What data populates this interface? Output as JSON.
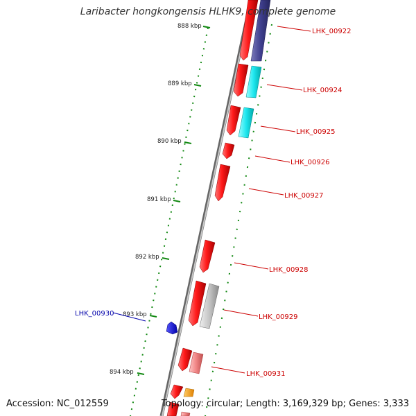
{
  "title": "Laribacter hongkongensis HLHK9, complete genome",
  "accession_label": "Accession: NC_012559",
  "topology_label": "Topology: circular; Length: 3,169,329 bp; Genes: 3,333",
  "ticks": [
    "888 kbp",
    "889 kbp",
    "890 kbp",
    "891 kbp",
    "892 kbp",
    "893 kbp",
    "894 kbp"
  ],
  "genes": [
    {
      "label": "LHK_00922",
      "strand": "forward"
    },
    {
      "label": "LHK_00924",
      "strand": "forward"
    },
    {
      "label": "LHK_00925",
      "strand": "forward"
    },
    {
      "label": "LHK_00926",
      "strand": "forward"
    },
    {
      "label": "LHK_00927",
      "strand": "forward"
    },
    {
      "label": "LHK_00928",
      "strand": "forward"
    },
    {
      "label": "LHK_00929",
      "strand": "forward"
    },
    {
      "label": "LHK_00930",
      "strand": "reverse"
    },
    {
      "label": "LHK_00931",
      "strand": "forward"
    }
  ],
  "colors": {
    "forward_cds": "#ee1111",
    "reverse_cds": "#1a1aee",
    "backbone": "#888888",
    "tick": "#118811",
    "label_forward": "#cc0000",
    "label_reverse": "#0000aa",
    "feature_cyan": "#18e8ee",
    "feature_navy": "#3c3c8a",
    "feature_grey": "#bbbbbb",
    "feature_pink": "#f08080",
    "feature_orange": "#ff9900"
  }
}
